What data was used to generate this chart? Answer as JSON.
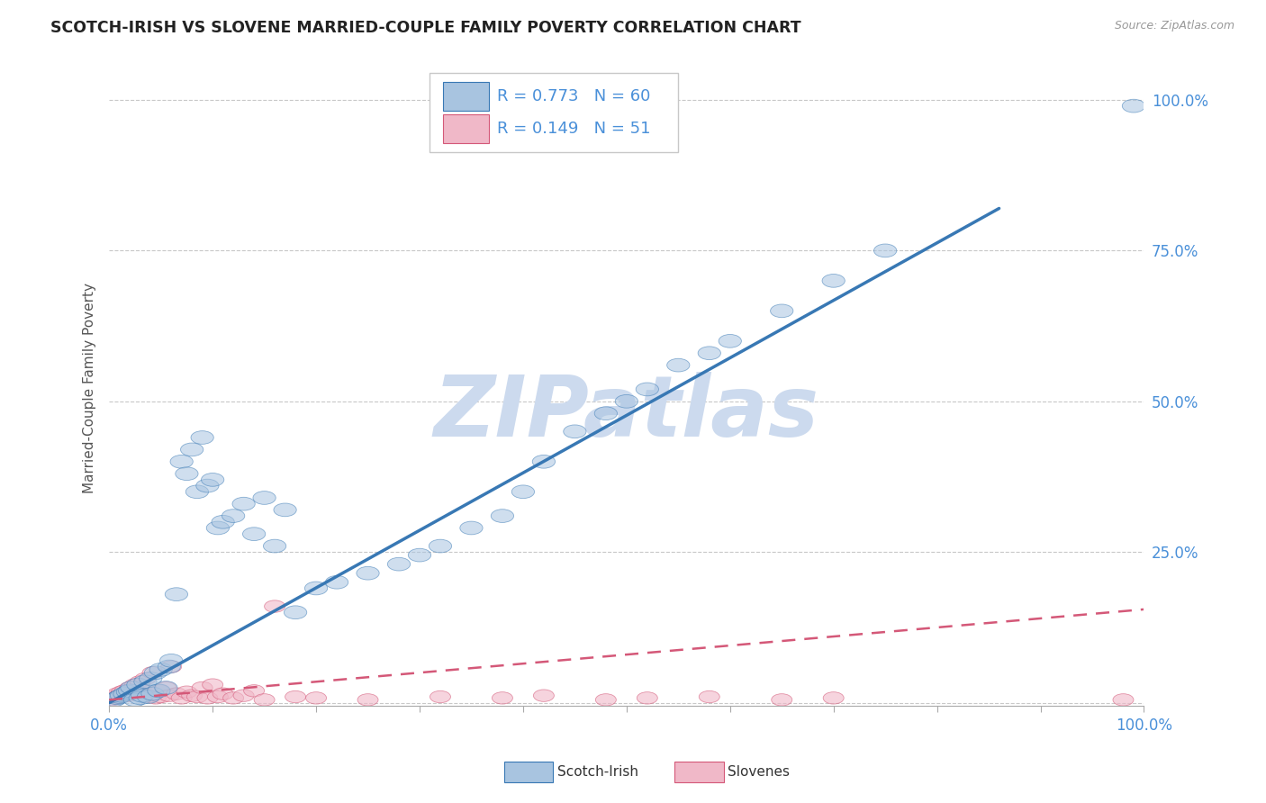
{
  "title": "SCOTCH-IRISH VS SLOVENE MARRIED-COUPLE FAMILY POVERTY CORRELATION CHART",
  "source_text": "Source: ZipAtlas.com",
  "ylabel": "Married-Couple Family Poverty",
  "watermark": "ZIPatlas",
  "legend_label1": "Scotch-Irish",
  "legend_label2": "Slovenes",
  "R1": 0.773,
  "N1": 60,
  "R2": 0.149,
  "N2": 51,
  "blue_color": "#a8c4e0",
  "blue_color_dark": "#3878b4",
  "pink_color": "#f0b8c8",
  "pink_color_dark": "#d45878",
  "title_color": "#222222",
  "axis_label_color": "#4a90d9",
  "grid_color": "#c8c8c8",
  "watermark_color": "#ccdaee",
  "scotch_irish_x": [
    0.005,
    0.008,
    0.01,
    0.012,
    0.015,
    0.018,
    0.02,
    0.022,
    0.025,
    0.028,
    0.03,
    0.032,
    0.035,
    0.038,
    0.04,
    0.042,
    0.045,
    0.048,
    0.05,
    0.055,
    0.058,
    0.06,
    0.065,
    0.07,
    0.075,
    0.08,
    0.085,
    0.09,
    0.095,
    0.1,
    0.105,
    0.11,
    0.12,
    0.13,
    0.14,
    0.15,
    0.16,
    0.17,
    0.18,
    0.2,
    0.22,
    0.25,
    0.28,
    0.3,
    0.32,
    0.35,
    0.38,
    0.4,
    0.42,
    0.45,
    0.48,
    0.5,
    0.52,
    0.55,
    0.58,
    0.6,
    0.65,
    0.7,
    0.75,
    0.99
  ],
  "scotch_irish_y": [
    0.005,
    0.008,
    0.01,
    0.012,
    0.015,
    0.018,
    0.02,
    0.025,
    0.005,
    0.03,
    0.008,
    0.012,
    0.035,
    0.01,
    0.04,
    0.015,
    0.05,
    0.02,
    0.055,
    0.025,
    0.06,
    0.07,
    0.18,
    0.4,
    0.38,
    0.42,
    0.35,
    0.44,
    0.36,
    0.37,
    0.29,
    0.3,
    0.31,
    0.33,
    0.28,
    0.34,
    0.26,
    0.32,
    0.15,
    0.19,
    0.2,
    0.215,
    0.23,
    0.245,
    0.26,
    0.29,
    0.31,
    0.35,
    0.4,
    0.45,
    0.48,
    0.5,
    0.52,
    0.56,
    0.58,
    0.6,
    0.65,
    0.7,
    0.75,
    0.99
  ],
  "slovene_x": [
    0.002,
    0.004,
    0.006,
    0.008,
    0.01,
    0.012,
    0.015,
    0.018,
    0.02,
    0.022,
    0.025,
    0.028,
    0.03,
    0.032,
    0.035,
    0.038,
    0.04,
    0.042,
    0.045,
    0.048,
    0.05,
    0.055,
    0.058,
    0.06,
    0.065,
    0.07,
    0.075,
    0.08,
    0.085,
    0.09,
    0.095,
    0.1,
    0.105,
    0.11,
    0.12,
    0.13,
    0.14,
    0.15,
    0.16,
    0.18,
    0.2,
    0.25,
    0.32,
    0.38,
    0.42,
    0.48,
    0.52,
    0.58,
    0.65,
    0.7,
    0.98
  ],
  "slovene_y": [
    0.005,
    0.01,
    0.008,
    0.015,
    0.012,
    0.018,
    0.02,
    0.012,
    0.025,
    0.015,
    0.03,
    0.018,
    0.035,
    0.02,
    0.04,
    0.01,
    0.015,
    0.05,
    0.008,
    0.02,
    0.01,
    0.025,
    0.012,
    0.06,
    0.015,
    0.008,
    0.018,
    0.012,
    0.01,
    0.025,
    0.008,
    0.03,
    0.01,
    0.015,
    0.008,
    0.012,
    0.02,
    0.005,
    0.16,
    0.01,
    0.008,
    0.005,
    0.01,
    0.008,
    0.012,
    0.005,
    0.008,
    0.01,
    0.005,
    0.008,
    0.005
  ],
  "xlim": [
    0.0,
    1.0
  ],
  "ylim": [
    -0.005,
    1.05
  ],
  "ytick_positions": [
    0.0,
    0.25,
    0.5,
    0.75,
    1.0
  ],
  "ytick_labels": [
    "",
    "25.0%",
    "50.0%",
    "75.0%",
    "100.0%"
  ],
  "xtick_positions": [
    0.0,
    0.1,
    0.2,
    0.3,
    0.4,
    0.5,
    0.6,
    0.7,
    0.8,
    0.9,
    1.0
  ],
  "xtick_labels": [
    "0.0%",
    "",
    "",
    "",
    "",
    "",
    "",
    "",
    "",
    "",
    "100.0%"
  ],
  "blue_line_x": [
    0.0,
    0.86
  ],
  "blue_line_y": [
    0.0,
    0.82
  ],
  "pink_line_x": [
    0.0,
    1.0
  ],
  "pink_line_y": [
    0.005,
    0.155
  ]
}
